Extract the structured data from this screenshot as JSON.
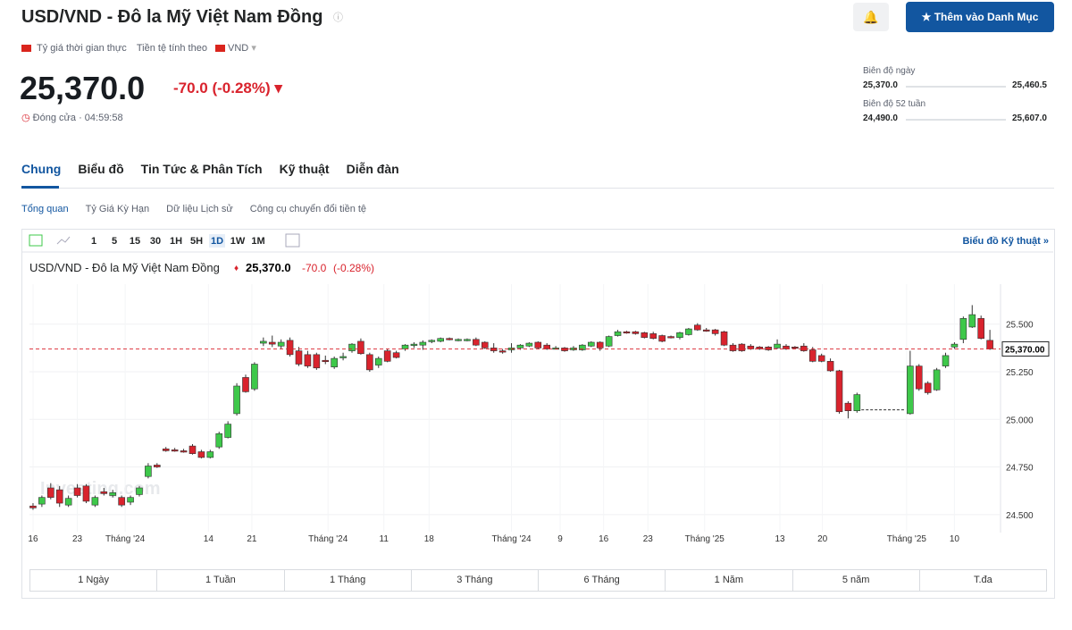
{
  "header": {
    "title": "USD/VND - Đô la Mỹ Việt Nam Đồng",
    "realtime": "Tỷ giá thời gian thực",
    "currency_label": "Tiền tệ tính theo",
    "currency": "VND"
  },
  "quote": {
    "price": "25,370.0",
    "change": "-70.0 (-0.28%)",
    "status": "Đóng cửa · 04:59:58"
  },
  "actions": {
    "watchlist": "Thêm vào Danh Mục"
  },
  "ranges": [
    {
      "label": "Biên độ ngày",
      "low": "25,370.0",
      "high": "25,460.5"
    },
    {
      "label": "Biên độ 52 tuần",
      "low": "24,490.0",
      "high": "25,607.0"
    }
  ],
  "tabs": [
    "Chung",
    "Biểu đồ",
    "Tin Tức & Phân Tích",
    "Kỹ thuật",
    "Diễn đàn"
  ],
  "subtabs": [
    "Tổng quan",
    "Tỷ Giá Kỳ Hạn",
    "Dữ liệu Lịch sử",
    "Công cụ chuyển đổi tiền tệ"
  ],
  "chart_toolbar": {
    "intervals": [
      "1",
      "5",
      "15",
      "30",
      "1H",
      "5H",
      "1D",
      "1W",
      "1M"
    ],
    "link": "Biểu đồ Kỹ thuật »"
  },
  "chart_data": {
    "type": "candlestick",
    "title": "USD/VND - Đô la Mỹ Việt Nam Đồng",
    "last": "25,370.0",
    "change": "-70.0",
    "change_pct": "(-0.28%)",
    "watermark": "Investing.com",
    "up_color": "#3ec84a",
    "down_color": "#d9232d",
    "ylim": [
      24410,
      25710
    ],
    "yticks": [
      {
        "value": 24500,
        "label": "24.500"
      },
      {
        "value": 24750,
        "label": "24.750"
      },
      {
        "value": 25000,
        "label": "25.000"
      },
      {
        "value": 25250,
        "label": "25.250"
      },
      {
        "value": 25500,
        "label": "25.500"
      }
    ],
    "last_price": {
      "value": 25370,
      "label": "25,370.00"
    },
    "xlim": [
      -0.4,
      109.2
    ],
    "xticks": [
      {
        "value": 0,
        "label": "16"
      },
      {
        "value": 5,
        "label": "23"
      },
      {
        "value": 10.4,
        "label": "Tháng '24"
      },
      {
        "value": 19.8,
        "label": "14"
      },
      {
        "value": 24.7,
        "label": "21"
      },
      {
        "value": 33.3,
        "label": "Tháng '24"
      },
      {
        "value": 39.6,
        "label": "11"
      },
      {
        "value": 44.7,
        "label": "18"
      },
      {
        "value": 54,
        "label": "Tháng '24"
      },
      {
        "value": 59.5,
        "label": "9"
      },
      {
        "value": 64.4,
        "label": "16"
      },
      {
        "value": 69.4,
        "label": "23"
      },
      {
        "value": 75.8,
        "label": "Tháng '25"
      },
      {
        "value": 84.3,
        "label": "13"
      },
      {
        "value": 89.1,
        "label": "20"
      },
      {
        "value": 98.6,
        "label": "Tháng '25"
      },
      {
        "value": 104,
        "label": "10"
      }
    ],
    "ohlc": [
      [
        24545,
        24560,
        24525,
        24535
      ],
      [
        24555,
        24600,
        24540,
        24590
      ],
      [
        24640,
        24665,
        24580,
        24590
      ],
      [
        24630,
        24650,
        24540,
        24560
      ],
      [
        24550,
        24600,
        24540,
        24585
      ],
      [
        24640,
        24660,
        24590,
        24600
      ],
      [
        24650,
        24660,
        24560,
        24570
      ],
      [
        24550,
        24600,
        24540,
        24590
      ],
      [
        24620,
        24640,
        24600,
        24610
      ],
      [
        24600,
        24630,
        24590,
        24615
      ],
      [
        24590,
        24600,
        24540,
        24550
      ],
      [
        24565,
        24600,
        24550,
        24590
      ],
      [
        24605,
        24650,
        24595,
        24640
      ],
      [
        24700,
        24770,
        24690,
        24755
      ],
      [
        24760,
        24770,
        24745,
        24750
      ],
      [
        24845,
        24855,
        24830,
        24835
      ],
      [
        24840,
        24850,
        24830,
        24835
      ],
      [
        24835,
        24845,
        24825,
        24830
      ],
      [
        24860,
        24870,
        24815,
        24820
      ],
      [
        24830,
        24840,
        24795,
        24800
      ],
      [
        24800,
        24840,
        24795,
        24830
      ],
      [
        24855,
        24935,
        24845,
        24925
      ],
      [
        24905,
        24990,
        24900,
        24975
      ],
      [
        25030,
        25190,
        25020,
        25175
      ],
      [
        25220,
        25235,
        25140,
        25145
      ],
      [
        25160,
        25300,
        25150,
        25290
      ],
      [
        25400,
        25430,
        25385,
        25410
      ],
      [
        25405,
        25440,
        25380,
        25395
      ],
      [
        25385,
        25420,
        25370,
        25405
      ],
      [
        25415,
        25430,
        25330,
        25340
      ],
      [
        25360,
        25380,
        25280,
        25290
      ],
      [
        25340,
        25360,
        25270,
        25280
      ],
      [
        25340,
        25350,
        25260,
        25270
      ],
      [
        25310,
        25335,
        25290,
        25305
      ],
      [
        25275,
        25330,
        25265,
        25320
      ],
      [
        25325,
        25350,
        25310,
        25330
      ],
      [
        25360,
        25400,
        25350,
        25395
      ],
      [
        25410,
        25425,
        25340,
        25345
      ],
      [
        25340,
        25350,
        25250,
        25260
      ],
      [
        25285,
        25330,
        25270,
        25320
      ],
      [
        25360,
        25370,
        25300,
        25305
      ],
      [
        25350,
        25360,
        25320,
        25325
      ],
      [
        25370,
        25395,
        25360,
        25390
      ],
      [
        25390,
        25405,
        25375,
        25395
      ],
      [
        25390,
        25415,
        25365,
        25405
      ],
      [
        25410,
        25420,
        25400,
        25415
      ],
      [
        25410,
        25430,
        25405,
        25425
      ],
      [
        25425,
        25430,
        25415,
        25420
      ],
      [
        25420,
        25425,
        25410,
        25420
      ],
      [
        25415,
        25425,
        25410,
        25420
      ],
      [
        25420,
        25430,
        25385,
        25390
      ],
      [
        25405,
        25410,
        25370,
        25375
      ],
      [
        25375,
        25400,
        25350,
        25360
      ],
      [
        25360,
        25370,
        25345,
        25355
      ],
      [
        25365,
        25400,
        25350,
        25375
      ],
      [
        25375,
        25395,
        25365,
        25390
      ],
      [
        25385,
        25405,
        25380,
        25400
      ],
      [
        25405,
        25410,
        25370,
        25375
      ],
      [
        25390,
        25400,
        25365,
        25370
      ],
      [
        25375,
        25385,
        25370,
        25375
      ],
      [
        25375,
        25380,
        25355,
        25360
      ],
      [
        25365,
        25385,
        25360,
        25375
      ],
      [
        25365,
        25395,
        25360,
        25390
      ],
      [
        25385,
        25410,
        25380,
        25405
      ],
      [
        25405,
        25410,
        25360,
        25375
      ],
      [
        25385,
        25440,
        25380,
        25435
      ],
      [
        25440,
        25470,
        25435,
        25460
      ],
      [
        25460,
        25465,
        25450,
        25455
      ],
      [
        25460,
        25465,
        25445,
        25450
      ],
      [
        25455,
        25460,
        25425,
        25430
      ],
      [
        25450,
        25460,
        25420,
        25425
      ],
      [
        25440,
        25445,
        25405,
        25410
      ],
      [
        25435,
        25440,
        25425,
        25430
      ],
      [
        25430,
        25460,
        25420,
        25455
      ],
      [
        25445,
        25480,
        25440,
        25475
      ],
      [
        25495,
        25505,
        25465,
        25470
      ],
      [
        25470,
        25480,
        25460,
        25465
      ],
      [
        25470,
        25475,
        25440,
        25450
      ],
      [
        25460,
        25465,
        25385,
        25390
      ],
      [
        25390,
        25400,
        25355,
        25360
      ],
      [
        25395,
        25400,
        25355,
        25360
      ],
      [
        25385,
        25395,
        25365,
        25370
      ],
      [
        25380,
        25385,
        25365,
        25370
      ],
      [
        25380,
        25385,
        25360,
        25365
      ],
      [
        25375,
        25420,
        25370,
        25395
      ],
      [
        25385,
        25395,
        25365,
        25370
      ],
      [
        25380,
        25385,
        25370,
        25375
      ],
      [
        25385,
        25400,
        25355,
        25360
      ],
      [
        25365,
        25380,
        25300,
        25305
      ],
      [
        25335,
        25345,
        25300,
        25305
      ],
      [
        25305,
        25320,
        25250,
        25255
      ],
      [
        25255,
        25260,
        25030,
        25040
      ],
      [
        25085,
        25095,
        25005,
        25045
      ],
      [
        25045,
        25140,
        25035,
        25130
      ],
      [
        25050,
        25050,
        25050,
        25050
      ],
      [
        25050,
        25050,
        25050,
        25050
      ],
      [
        25050,
        25050,
        25050,
        25050
      ],
      [
        25050,
        25050,
        25050,
        25050
      ],
      [
        25050,
        25050,
        25050,
        25050
      ],
      [
        25030,
        25360,
        25025,
        25280
      ],
      [
        25280,
        25290,
        25150,
        25160
      ],
      [
        25190,
        25200,
        25130,
        25140
      ],
      [
        25155,
        25270,
        25150,
        25260
      ],
      [
        25280,
        25350,
        25270,
        25335
      ],
      [
        25380,
        25405,
        25370,
        25395
      ],
      [
        25420,
        25540,
        25400,
        25530
      ],
      [
        25485,
        25600,
        25480,
        25550
      ],
      [
        25530,
        25545,
        25420,
        25425
      ],
      [
        25415,
        25470,
        25365,
        25370
      ]
    ]
  },
  "periods": [
    "1 Ngày",
    "1 Tuần",
    "1 Tháng",
    "3 Tháng",
    "6 Tháng",
    "1 Năm",
    "5 năm",
    "T.đa"
  ]
}
